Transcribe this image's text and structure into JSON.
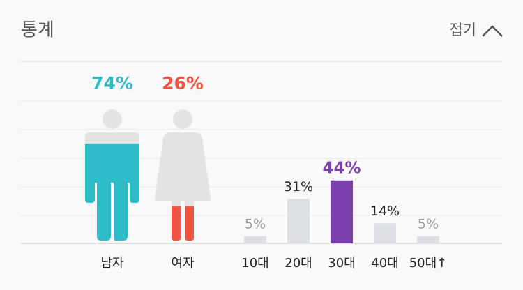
{
  "header": {
    "title": "통계",
    "toggle": "접기"
  },
  "chart_data": [
    {
      "type": "pictogram",
      "categories": [
        "남자",
        "여자"
      ],
      "values": [
        74,
        26
      ],
      "value_labels": [
        "74%",
        "26%"
      ],
      "colors": [
        "#2ebcc8",
        "#ef5540"
      ]
    },
    {
      "type": "bar",
      "categories": [
        "10대",
        "20대",
        "30대",
        "40대",
        "50대↑"
      ],
      "values": [
        5,
        31,
        44,
        14,
        5
      ],
      "value_labels": [
        "5%",
        "31%",
        "44%",
        "14%",
        "5%"
      ],
      "colors": [
        "#dcdfe3",
        "#dcdfe3",
        "#7d3fb0",
        "#dcdfe3",
        "#dcdfe3"
      ],
      "label_colors": [
        "#9a9a9a",
        "#222222",
        "#7d3fb0",
        "#222222",
        "#9a9a9a"
      ]
    }
  ]
}
